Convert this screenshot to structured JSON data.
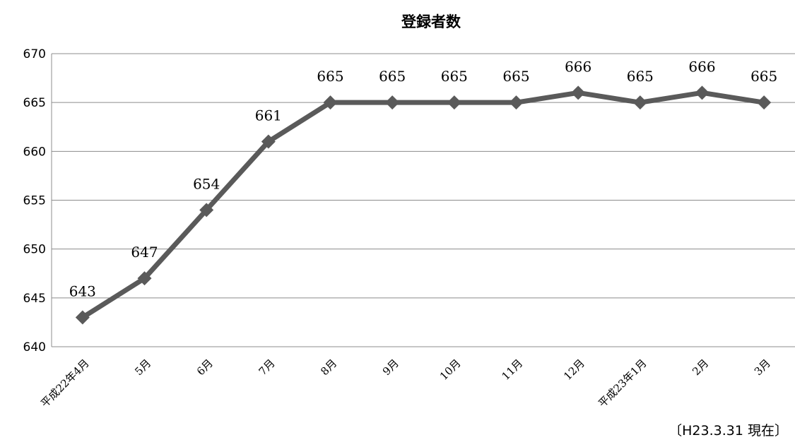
{
  "chart_data": {
    "type": "line",
    "title": "登録者数",
    "xlabel": "",
    "ylabel": "",
    "categories": [
      "平成22年4月",
      "5月",
      "6月",
      "7月",
      "8月",
      "9月",
      "10月",
      "11月",
      "12月",
      "平成23年1月",
      "2月",
      "3月"
    ],
    "series": [
      {
        "values": [
          643,
          647,
          654,
          661,
          665,
          665,
          665,
          665,
          666,
          665,
          666,
          665
        ]
      }
    ],
    "ylim": [
      640,
      670
    ],
    "yticks": [
      640,
      645,
      650,
      655,
      660,
      665,
      670
    ],
    "grid": true,
    "legend": "none",
    "data_labels": true,
    "line_color": "#5a5a5a",
    "marker": "diamond"
  },
  "footnote": "〔H23.3.31 現在〕"
}
